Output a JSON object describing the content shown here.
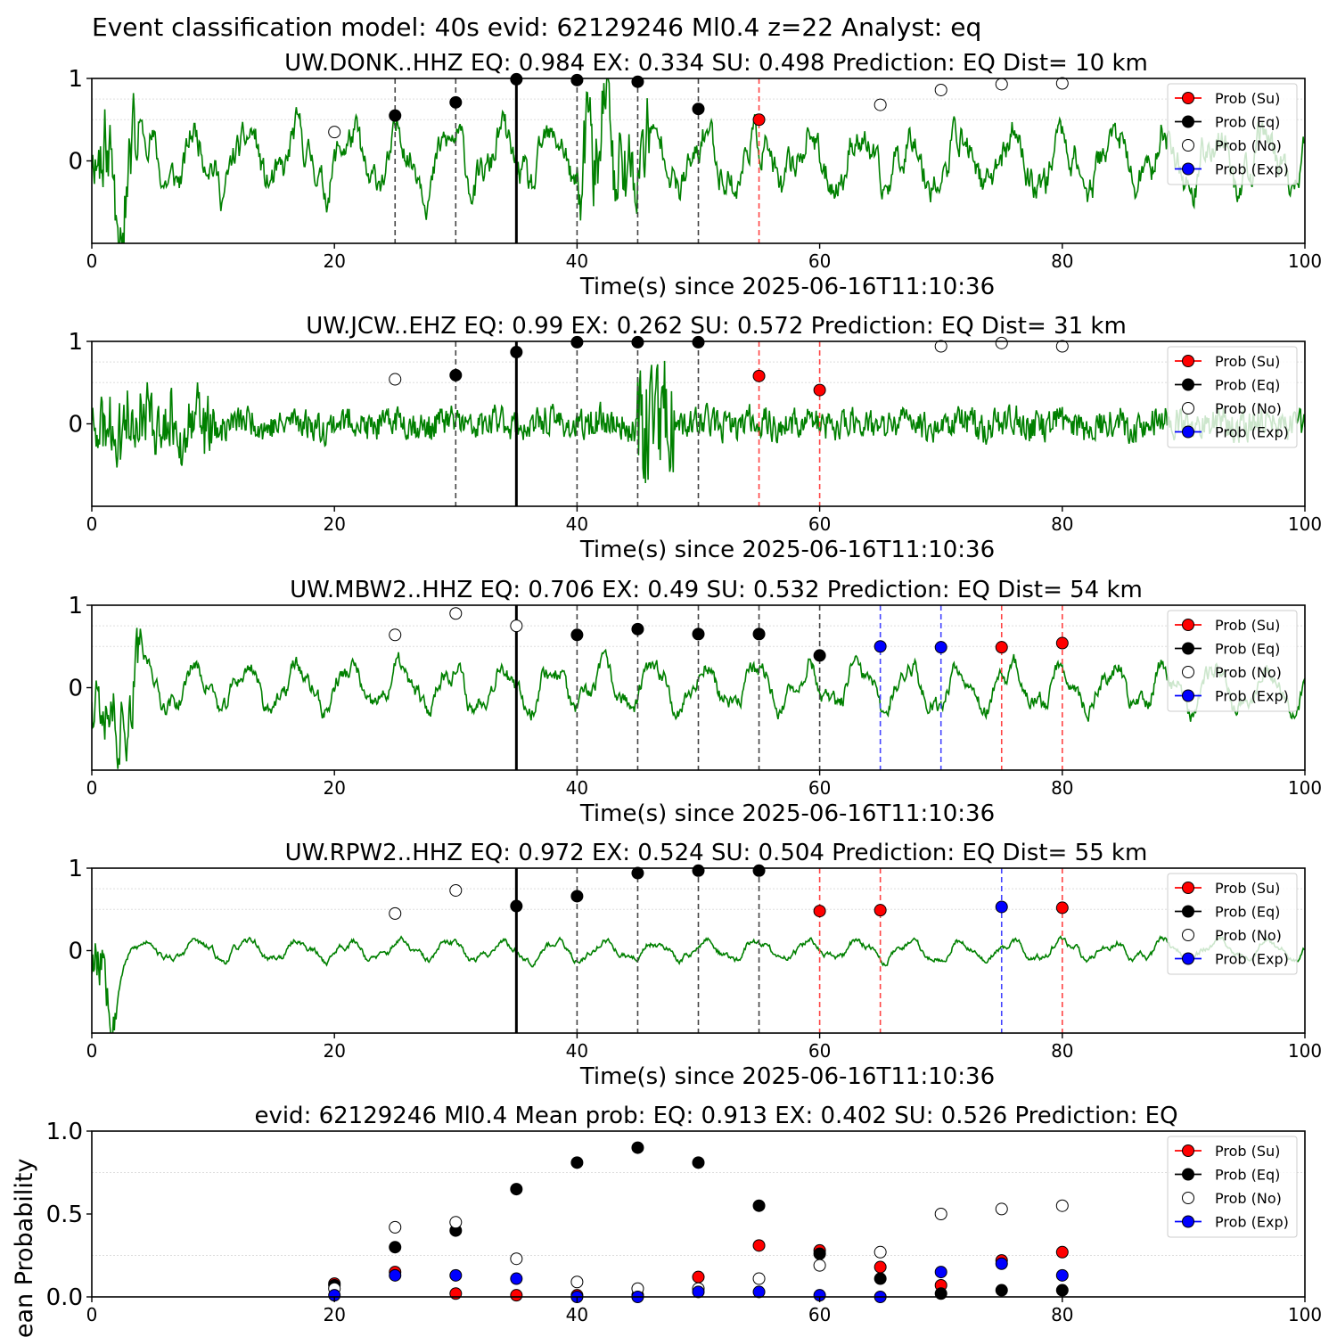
{
  "figure": {
    "suptitle": "Event classification model: 40s evid: 62129246 Ml0.4 z=22 Analyst: eq"
  },
  "legend": {
    "entries": [
      {
        "label": "Prob (Su)",
        "color": "#ff0000",
        "fill": "#ff0000"
      },
      {
        "label": "Prob (Eq)",
        "color": "#000000",
        "fill": "#000000"
      },
      {
        "label": "Prob (No)",
        "color": "#000000",
        "fill": "#ffffff"
      },
      {
        "label": "Prob (Exp)",
        "color": "#0000ff",
        "fill": "#0000ff"
      }
    ],
    "placement": "upper-right"
  },
  "colors": {
    "waveform": "#008000",
    "eq_line": "#444444",
    "su_line": "#ff4444",
    "exp_line": "#4444ff",
    "pick_line": "#000000"
  },
  "chart_data": [
    {
      "type": "line",
      "title": "UW.DONK..HHZ   EQ: 0.984  EX: 0.334  SU: 0.498   Prediction: EQ    Dist= 10 km",
      "xlabel": "Time(s) since 2025-06-16T11:10:36",
      "ylabel": "",
      "xlim": [
        0,
        100
      ],
      "ylim": [
        -1,
        1
      ],
      "xticks": [
        "0",
        "20",
        "40",
        "60",
        "80",
        "100"
      ],
      "yticks": [
        "1",
        "0"
      ],
      "grid": true,
      "pick_time": 35,
      "waveform": {
        "seed": 11,
        "amp": 0.32,
        "noise": 0.18,
        "smooth": 0.72,
        "bursts": [
          [
            0,
            4,
            0.5
          ],
          [
            40,
            46,
            0.6
          ]
        ]
      },
      "prob_points": [
        {
          "t": 20,
          "cls": "No",
          "p": 0.35
        },
        {
          "t": 25,
          "cls": "Eq",
          "p": 0.55
        },
        {
          "t": 30,
          "cls": "Eq",
          "p": 0.71
        },
        {
          "t": 35,
          "cls": "Eq",
          "p": 0.99
        },
        {
          "t": 40,
          "cls": "Eq",
          "p": 0.98
        },
        {
          "t": 45,
          "cls": "Eq",
          "p": 0.96
        },
        {
          "t": 50,
          "cls": "Eq",
          "p": 0.63
        },
        {
          "t": 55,
          "cls": "Su",
          "p": 0.5
        },
        {
          "t": 65,
          "cls": "No",
          "p": 0.68
        },
        {
          "t": 70,
          "cls": "No",
          "p": 0.86
        },
        {
          "t": 75,
          "cls": "No",
          "p": 0.93
        },
        {
          "t": 80,
          "cls": "No",
          "p": 0.94
        }
      ],
      "vlines": [
        {
          "t": 25,
          "cls": "Eq"
        },
        {
          "t": 30,
          "cls": "Eq"
        },
        {
          "t": 40,
          "cls": "Eq"
        },
        {
          "t": 45,
          "cls": "Eq"
        },
        {
          "t": 50,
          "cls": "Eq"
        },
        {
          "t": 55,
          "cls": "Su"
        }
      ]
    },
    {
      "type": "line",
      "title": "UW.JCW..EHZ   EQ: 0.99  EX: 0.262  SU: 0.572   Prediction: EQ    Dist= 31 km",
      "xlabel": "Time(s) since 2025-06-16T11:10:36",
      "ylabel": "",
      "xlim": [
        0,
        100
      ],
      "ylim": [
        -1,
        1
      ],
      "xticks": [
        "0",
        "20",
        "40",
        "60",
        "80",
        "100"
      ],
      "yticks": [
        "1",
        "0"
      ],
      "grid": true,
      "pick_time": 35,
      "waveform": {
        "seed": 23,
        "amp": 0.05,
        "noise": 0.11,
        "smooth": 0.3,
        "bursts": [
          [
            0,
            10,
            0.22
          ],
          [
            45,
            48,
            0.45
          ]
        ]
      },
      "prob_points": [
        {
          "t": 25,
          "cls": "No",
          "p": 0.54
        },
        {
          "t": 30,
          "cls": "Eq",
          "p": 0.59
        },
        {
          "t": 35,
          "cls": "Eq",
          "p": 0.87
        },
        {
          "t": 40,
          "cls": "Eq",
          "p": 0.99
        },
        {
          "t": 45,
          "cls": "Eq",
          "p": 0.99
        },
        {
          "t": 50,
          "cls": "Eq",
          "p": 0.99
        },
        {
          "t": 55,
          "cls": "Su",
          "p": 0.58
        },
        {
          "t": 60,
          "cls": "Su",
          "p": 0.41
        },
        {
          "t": 70,
          "cls": "No",
          "p": 0.94
        },
        {
          "t": 75,
          "cls": "No",
          "p": 0.98
        },
        {
          "t": 80,
          "cls": "No",
          "p": 0.94
        }
      ],
      "vlines": [
        {
          "t": 30,
          "cls": "Eq"
        },
        {
          "t": 40,
          "cls": "Eq"
        },
        {
          "t": 45,
          "cls": "Eq"
        },
        {
          "t": 50,
          "cls": "Eq"
        },
        {
          "t": 55,
          "cls": "Su"
        },
        {
          "t": 60,
          "cls": "Su"
        }
      ]
    },
    {
      "type": "line",
      "title": "UW.MBW2..HHZ   EQ: 0.706  EX: 0.49  SU: 0.532   Prediction: EQ    Dist= 54 km",
      "xlabel": "Time(s) since 2025-06-16T11:10:36",
      "ylabel": "",
      "xlim": [
        0,
        100
      ],
      "ylim": [
        -1,
        1
      ],
      "xticks": [
        "0",
        "20",
        "40",
        "60",
        "80",
        "100"
      ],
      "yticks": [
        "1",
        "0"
      ],
      "grid": true,
      "pick_time": 35,
      "waveform": {
        "seed": 37,
        "amp": 0.25,
        "noise": 0.09,
        "smooth": 0.7,
        "bursts": [
          [
            0,
            4,
            0.45
          ]
        ]
      },
      "prob_points": [
        {
          "t": 25,
          "cls": "No",
          "p": 0.64
        },
        {
          "t": 30,
          "cls": "No",
          "p": 0.9
        },
        {
          "t": 35,
          "cls": "No",
          "p": 0.75
        },
        {
          "t": 40,
          "cls": "Eq",
          "p": 0.64
        },
        {
          "t": 45,
          "cls": "Eq",
          "p": 0.71
        },
        {
          "t": 50,
          "cls": "Eq",
          "p": 0.65
        },
        {
          "t": 55,
          "cls": "Eq",
          "p": 0.65
        },
        {
          "t": 60,
          "cls": "Eq",
          "p": 0.39
        },
        {
          "t": 65,
          "cls": "Exp",
          "p": 0.5
        },
        {
          "t": 70,
          "cls": "Exp",
          "p": 0.49
        },
        {
          "t": 75,
          "cls": "Su",
          "p": 0.49
        },
        {
          "t": 80,
          "cls": "Su",
          "p": 0.54
        }
      ],
      "vlines": [
        {
          "t": 40,
          "cls": "Eq"
        },
        {
          "t": 45,
          "cls": "Eq"
        },
        {
          "t": 50,
          "cls": "Eq"
        },
        {
          "t": 55,
          "cls": "Eq"
        },
        {
          "t": 60,
          "cls": "Eq"
        },
        {
          "t": 65,
          "cls": "Exp"
        },
        {
          "t": 70,
          "cls": "Exp"
        },
        {
          "t": 75,
          "cls": "Su"
        },
        {
          "t": 80,
          "cls": "Su"
        }
      ]
    },
    {
      "type": "line",
      "title": "UW.RPW2..HHZ   EQ: 0.972  EX: 0.524  SU: 0.504   Prediction: EQ    Dist= 55 km",
      "xlabel": "Time(s) since 2025-06-16T11:10:36",
      "ylabel": "",
      "xlim": [
        0,
        100
      ],
      "ylim": [
        -1,
        1
      ],
      "xticks": [
        "0",
        "20",
        "40",
        "60",
        "80",
        "100"
      ],
      "yticks": [
        "1",
        "0"
      ],
      "grid": true,
      "pick_time": 35,
      "waveform": {
        "seed": 53,
        "amp": 0.12,
        "noise": 0.04,
        "smooth": 0.8,
        "bursts": [
          [
            0,
            2,
            0.5
          ]
        ]
      },
      "prob_points": [
        {
          "t": 25,
          "cls": "No",
          "p": 0.45
        },
        {
          "t": 30,
          "cls": "No",
          "p": 0.73
        },
        {
          "t": 35,
          "cls": "Eq",
          "p": 0.54
        },
        {
          "t": 40,
          "cls": "Eq",
          "p": 0.66
        },
        {
          "t": 45,
          "cls": "Eq",
          "p": 0.94
        },
        {
          "t": 50,
          "cls": "Eq",
          "p": 0.97
        },
        {
          "t": 55,
          "cls": "Eq",
          "p": 0.97
        },
        {
          "t": 60,
          "cls": "Su",
          "p": 0.48
        },
        {
          "t": 65,
          "cls": "Su",
          "p": 0.49
        },
        {
          "t": 75,
          "cls": "Exp",
          "p": 0.53
        },
        {
          "t": 80,
          "cls": "Su",
          "p": 0.52
        }
      ],
      "vlines": [
        {
          "t": 40,
          "cls": "Eq"
        },
        {
          "t": 45,
          "cls": "Eq"
        },
        {
          "t": 50,
          "cls": "Eq"
        },
        {
          "t": 55,
          "cls": "Eq"
        },
        {
          "t": 60,
          "cls": "Su"
        },
        {
          "t": 65,
          "cls": "Su"
        },
        {
          "t": 75,
          "cls": "Exp"
        },
        {
          "t": 80,
          "cls": "Su"
        }
      ]
    },
    {
      "type": "scatter",
      "title": "evid: 62129246  Ml0.4   Mean prob:   EQ: 0.913  EX: 0.402  SU: 0.526   Prediction: EQ",
      "xlabel": "",
      "ylabel": "Mean Probability",
      "xlim": [
        0,
        100
      ],
      "ylim": [
        0,
        1
      ],
      "xticks": [
        "0",
        "20",
        "40",
        "60",
        "80",
        "100"
      ],
      "yticks": [
        "1.0",
        "0.5",
        "0.0"
      ],
      "grid": true,
      "x": [
        20,
        25,
        30,
        35,
        40,
        45,
        50,
        55,
        60,
        65,
        70,
        75,
        80
      ],
      "series": [
        {
          "name": "Prob (Su)",
          "cls": "Su",
          "values": [
            0.08,
            0.15,
            0.02,
            0.01,
            0.01,
            0.01,
            0.12,
            0.31,
            0.28,
            0.18,
            0.07,
            0.22,
            0.27
          ]
        },
        {
          "name": "Prob (Eq)",
          "cls": "Eq",
          "values": [
            0.07,
            0.3,
            0.4,
            0.65,
            0.81,
            0.9,
            0.81,
            0.55,
            0.26,
            0.11,
            0.02,
            0.04,
            0.04
          ]
        },
        {
          "name": "Prob (No)",
          "cls": "No",
          "values": [
            0.05,
            0.42,
            0.45,
            0.23,
            0.09,
            0.05,
            0.05,
            0.11,
            0.19,
            0.27,
            0.5,
            0.53,
            0.55
          ]
        },
        {
          "name": "Prob (Exp)",
          "cls": "Exp",
          "values": [
            0.01,
            0.13,
            0.13,
            0.11,
            0.0,
            0.0,
            0.03,
            0.03,
            0.01,
            0.0,
            0.15,
            0.2,
            0.13
          ]
        }
      ]
    }
  ]
}
